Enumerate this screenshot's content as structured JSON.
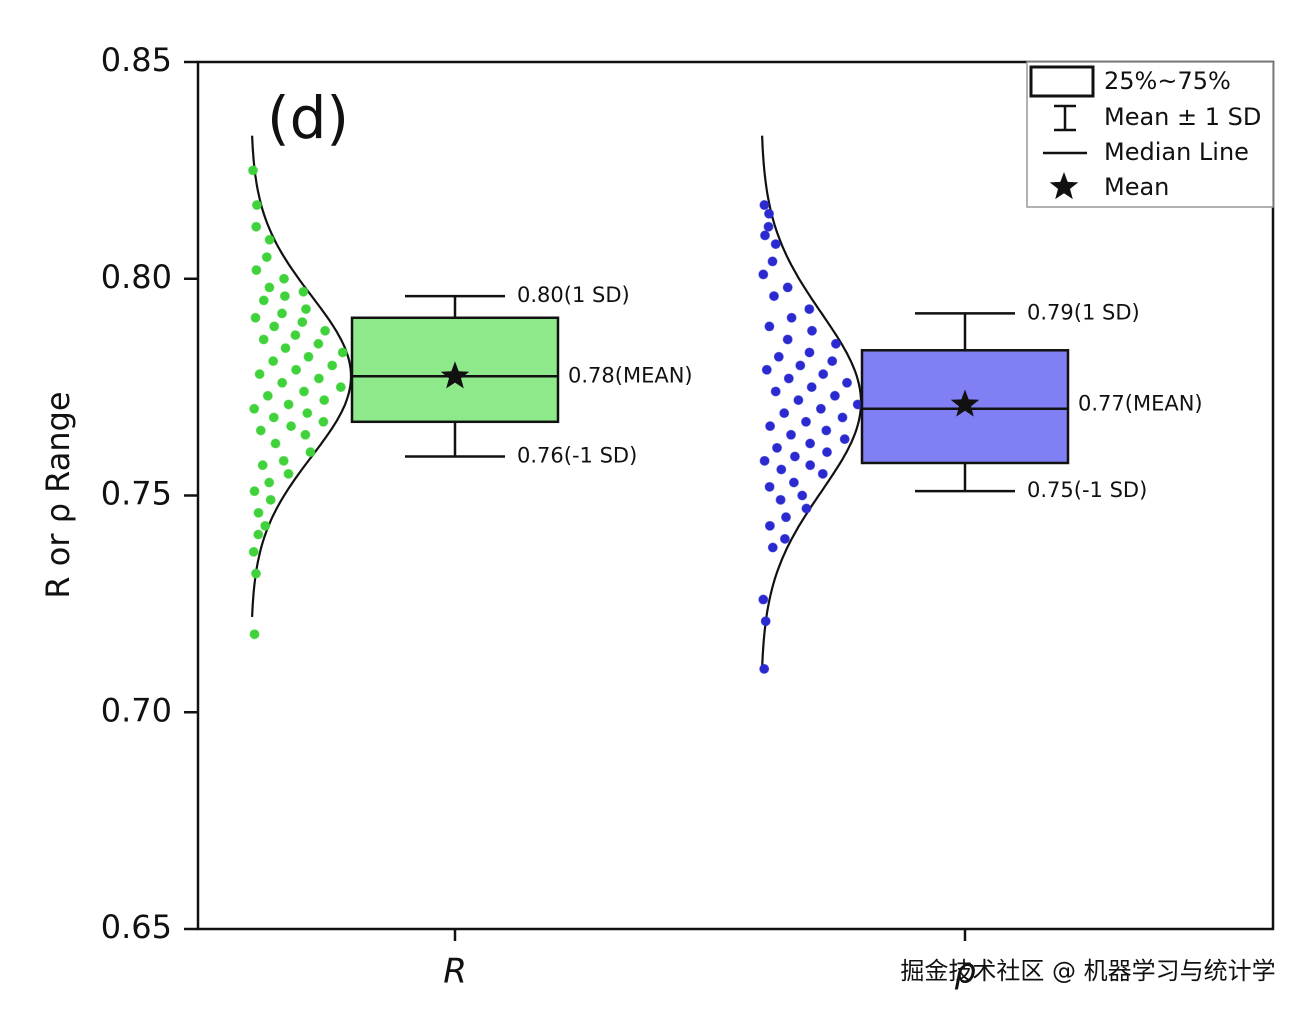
{
  "chart_data": {
    "type": "box",
    "annotation": "(d)",
    "y_label": "R or ρ Range",
    "watermark": "掘金技术社区 @ 机器学习与统计学",
    "ylim": [
      0.65,
      0.85
    ],
    "yticks": [
      0.65,
      {
        "value": 0.7,
        "label": "0.70"
      },
      0.75,
      {
        "value": 0.8,
        "label": "0.80"
      },
      0.85
    ],
    "categories": [
      "R",
      "ρ"
    ],
    "legend": {
      "position": "upper right",
      "box": "25%~75%",
      "whisker": "Mean ± 1 SD",
      "median": "Median Line",
      "mean": "Mean"
    },
    "series": [
      {
        "name": "R",
        "color": "#8ee98a",
        "point_color": "#3fd23a",
        "q1": 0.767,
        "q3": 0.791,
        "median": 0.7775,
        "mean": 0.7775,
        "whisker_high": 0.796,
        "whisker_low": 0.759,
        "value_labels": {
          "whisker_high": "0.80(1 SD)",
          "mean": "0.78(MEAN)",
          "whisker_low": "0.76(-1 SD)"
        },
        "values": [
          0.825,
          0.817,
          0.812,
          0.809,
          0.805,
          0.802,
          0.8,
          0.798,
          0.797,
          0.796,
          0.795,
          0.793,
          0.792,
          0.791,
          0.79,
          0.789,
          0.788,
          0.787,
          0.786,
          0.785,
          0.784,
          0.783,
          0.782,
          0.781,
          0.78,
          0.779,
          0.778,
          0.777,
          0.776,
          0.775,
          0.774,
          0.773,
          0.772,
          0.771,
          0.77,
          0.769,
          0.768,
          0.767,
          0.766,
          0.765,
          0.764,
          0.762,
          0.76,
          0.758,
          0.757,
          0.755,
          0.753,
          0.751,
          0.749,
          0.746,
          0.743,
          0.741,
          0.737,
          0.732,
          0.718
        ]
      },
      {
        "name": "ρ",
        "color": "#8080f4",
        "point_color": "#2a2ad0",
        "q1": 0.7575,
        "q3": 0.7835,
        "median": 0.77,
        "mean": 0.771,
        "whisker_high": 0.792,
        "whisker_low": 0.751,
        "value_labels": {
          "whisker_high": "0.79(1 SD)",
          "mean": "0.77(MEAN)",
          "whisker_low": "0.75(-1 SD)"
        },
        "values": [
          0.817,
          0.815,
          0.812,
          0.81,
          0.808,
          0.804,
          0.801,
          0.798,
          0.796,
          0.793,
          0.791,
          0.789,
          0.788,
          0.786,
          0.785,
          0.783,
          0.782,
          0.781,
          0.78,
          0.779,
          0.778,
          0.777,
          0.776,
          0.775,
          0.774,
          0.773,
          0.772,
          0.771,
          0.77,
          0.769,
          0.768,
          0.767,
          0.766,
          0.765,
          0.764,
          0.763,
          0.762,
          0.761,
          0.76,
          0.759,
          0.758,
          0.757,
          0.756,
          0.755,
          0.753,
          0.752,
          0.75,
          0.749,
          0.747,
          0.745,
          0.743,
          0.74,
          0.738,
          0.726,
          0.721,
          0.71
        ]
      }
    ]
  }
}
